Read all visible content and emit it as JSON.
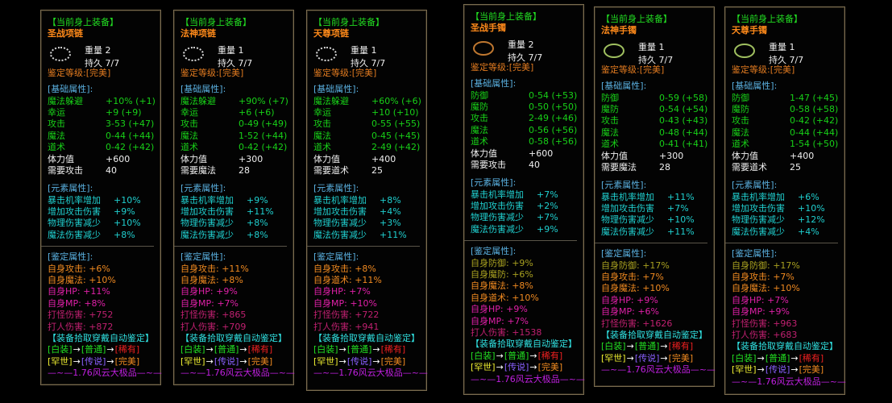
{
  "common": {
    "header": "【当前身上装备】",
    "weight_label": "重量",
    "durability_label": "持久",
    "grade": "鉴定等级:[完美]",
    "basic_title": "[基础属性]:",
    "element_title": "[元素属性]:",
    "appraise_title": "[鉴定属性]:",
    "auto_appraise": "【装备拾取穿戴自动鉴定】",
    "chain1": [
      "[白装]",
      "→",
      "[普通]",
      "→",
      "[稀有]"
    ],
    "chain2": [
      "[罕世]",
      "→",
      "[传说]",
      "→",
      "[完美]"
    ],
    "footer": "—~—1.76风云大极品—~—"
  },
  "panels": [
    {
      "name": "圣战项链",
      "icon": "necklace-icon",
      "weight": "2",
      "durability": "7/7",
      "basic": [
        [
          "魔法躲避",
          "+10%  (+1)"
        ],
        [
          "幸运",
          "+9 (+9)"
        ],
        [
          "攻击",
          "3-53 (+47)"
        ],
        [
          "魔法",
          "0-44 (+44)"
        ],
        [
          "道术",
          "0-42 (+42)"
        ]
      ],
      "plain": [
        [
          "体力值",
          "+600"
        ],
        [
          "需要攻击",
          "40"
        ]
      ],
      "element": [
        [
          "暴击机率增加",
          "+10%"
        ],
        [
          "增加攻击伤害",
          "+9%"
        ],
        [
          "物理伤害减少",
          "+10%"
        ],
        [
          "魔法伤害减少",
          "+8%"
        ]
      ],
      "appraise": [
        [
          "自身攻击:",
          "+6%",
          "orange"
        ],
        [
          "自身魔法:",
          "+10%",
          "orange"
        ],
        [
          "自身HP:",
          "+11%",
          "mag"
        ],
        [
          "自身MP:",
          "+8%",
          "mag"
        ],
        [
          "打怪伤害:",
          "+752",
          "dmag"
        ],
        [
          "打人伤害:",
          "+872",
          "dmag"
        ]
      ]
    },
    {
      "name": "法神项链",
      "icon": "necklace-icon",
      "weight": "1",
      "durability": "7/7",
      "basic": [
        [
          "魔法躲避",
          "+90%  (+7)"
        ],
        [
          "幸运",
          "+6 (+6)"
        ],
        [
          "攻击",
          "0-49 (+49)"
        ],
        [
          "魔法",
          "1-52 (+44)"
        ],
        [
          "道术",
          "0-42 (+42)"
        ]
      ],
      "plain": [
        [
          "体力值",
          "+300"
        ],
        [
          "需要魔法",
          "28"
        ]
      ],
      "element": [
        [
          "暴击机率增加",
          "+9%"
        ],
        [
          "增加攻击伤害",
          "+11%"
        ],
        [
          "物理伤害减少",
          "+8%"
        ],
        [
          "魔法伤害减少",
          "+8%"
        ]
      ],
      "appraise": [
        [
          "自身攻击:",
          "+11%",
          "orange"
        ],
        [
          "自身魔法:",
          "+8%",
          "orange"
        ],
        [
          "自身HP:",
          "+9%",
          "mag"
        ],
        [
          "自身MP:",
          "+7%",
          "mag"
        ],
        [
          "打怪伤害:",
          "+865",
          "dmag"
        ],
        [
          "打人伤害:",
          "+709",
          "dmag"
        ]
      ]
    },
    {
      "name": "天尊项链",
      "icon": "necklace-icon",
      "weight": "1",
      "durability": "7/7",
      "basic": [
        [
          "魔法躲避",
          "+60%  (+6)"
        ],
        [
          "幸运",
          "+10 (+10)"
        ],
        [
          "攻击",
          "0-55 (+55)"
        ],
        [
          "魔法",
          "0-45 (+45)"
        ],
        [
          "道术",
          "2-49 (+42)"
        ]
      ],
      "plain": [
        [
          "体力值",
          "+400"
        ],
        [
          "需要道术",
          "25"
        ]
      ],
      "element": [
        [
          "暴击机率增加",
          "+8%"
        ],
        [
          "增加攻击伤害",
          "+4%"
        ],
        [
          "物理伤害减少",
          "+3%"
        ],
        [
          "魔法伤害减少",
          "+11%"
        ]
      ],
      "appraise": [
        [
          "自身攻击:",
          "+8%",
          "orange"
        ],
        [
          "自身道术:",
          "+11%",
          "orange"
        ],
        [
          "自身HP:",
          "+7%",
          "mag"
        ],
        [
          "自身MP:",
          "+10%",
          "mag"
        ],
        [
          "打怪伤害:",
          "+722",
          "dmag"
        ],
        [
          "打人伤害:",
          "+941",
          "dmag"
        ]
      ]
    },
    {
      "name": "圣战手镯",
      "icon": "bracelet-icon",
      "weight": "2",
      "durability": "7/7",
      "basic": [
        [
          "防御",
          "0-54 (+53)"
        ],
        [
          "魔防",
          "0-50 (+50)"
        ],
        [
          "攻击",
          "2-49 (+46)"
        ],
        [
          "魔法",
          "0-56 (+56)"
        ],
        [
          "道术",
          "0-58 (+56)"
        ]
      ],
      "plain": [
        [
          "体力值",
          "+600"
        ],
        [
          "需要攻击",
          "40"
        ]
      ],
      "element": [
        [
          "暴击机率增加",
          "+7%"
        ],
        [
          "增加攻击伤害",
          "+2%"
        ],
        [
          "物理伤害减少",
          "+7%"
        ],
        [
          "魔法伤害减少",
          "+9%"
        ]
      ],
      "appraise": [
        [
          "自身防御:",
          "+9%",
          "olive"
        ],
        [
          "自身魔防:",
          "+6%",
          "olive"
        ],
        [
          "自身魔法:",
          "+8%",
          "orange"
        ],
        [
          "自身道术:",
          "+10%",
          "orange"
        ],
        [
          "自身HP:",
          "+9%",
          "mag"
        ],
        [
          "自身MP:",
          "+7%",
          "mag"
        ],
        [
          "打人伤害:",
          "+1538",
          "dmag"
        ]
      ]
    },
    {
      "name": "法神手镯",
      "icon": "bracelet-icon",
      "weight": "1",
      "durability": "7/7",
      "basic": [
        [
          "防御",
          "0-59 (+58)"
        ],
        [
          "魔防",
          "0-54 (+54)"
        ],
        [
          "攻击",
          "0-43 (+43)"
        ],
        [
          "魔法",
          "0-48 (+44)"
        ],
        [
          "道术",
          "0-41 (+41)"
        ]
      ],
      "plain": [
        [
          "体力值",
          "+300"
        ],
        [
          "需要魔法",
          "28"
        ]
      ],
      "element": [
        [
          "暴击机率增加",
          "+11%"
        ],
        [
          "增加攻击伤害",
          "+7%"
        ],
        [
          "物理伤害减少",
          "+10%"
        ],
        [
          "魔法伤害减少",
          "+11%"
        ]
      ],
      "appraise": [
        [
          "自身防御:",
          "+17%",
          "olive"
        ],
        [
          "自身攻击:",
          "+7%",
          "orange"
        ],
        [
          "自身魔法:",
          "+10%",
          "orange"
        ],
        [
          "自身HP:",
          "+9%",
          "mag"
        ],
        [
          "自身MP:",
          "+6%",
          "mag"
        ],
        [
          "打怪伤害:",
          "+1626",
          "dmag"
        ]
      ]
    },
    {
      "name": "天尊手镯",
      "icon": "bracelet-icon",
      "weight": "1",
      "durability": "7/7",
      "basic": [
        [
          "防御",
          "1-47 (+45)"
        ],
        [
          "魔防",
          "0-58 (+58)"
        ],
        [
          "攻击",
          "0-42 (+42)"
        ],
        [
          "魔法",
          "0-44 (+44)"
        ],
        [
          "道术",
          "1-54 (+50)"
        ]
      ],
      "plain": [
        [
          "体力值",
          "+400"
        ],
        [
          "需要道术",
          "25"
        ]
      ],
      "element": [
        [
          "暴击机率增加",
          "+6%"
        ],
        [
          "增加攻击伤害",
          "+10%"
        ],
        [
          "物理伤害减少",
          "+12%"
        ],
        [
          "魔法伤害减少",
          "+4%"
        ]
      ],
      "appraise": [
        [
          "自身防御:",
          "+17%",
          "olive"
        ],
        [
          "自身攻击:",
          "+7%",
          "orange"
        ],
        [
          "自身魔法:",
          "+10%",
          "orange"
        ],
        [
          "自身HP:",
          "+7%",
          "mag"
        ],
        [
          "自身MP:",
          "+9%",
          "mag"
        ],
        [
          "打怪伤害:",
          "+963",
          "dmag"
        ],
        [
          "打人伤害:",
          "+683",
          "dmag"
        ]
      ]
    }
  ]
}
